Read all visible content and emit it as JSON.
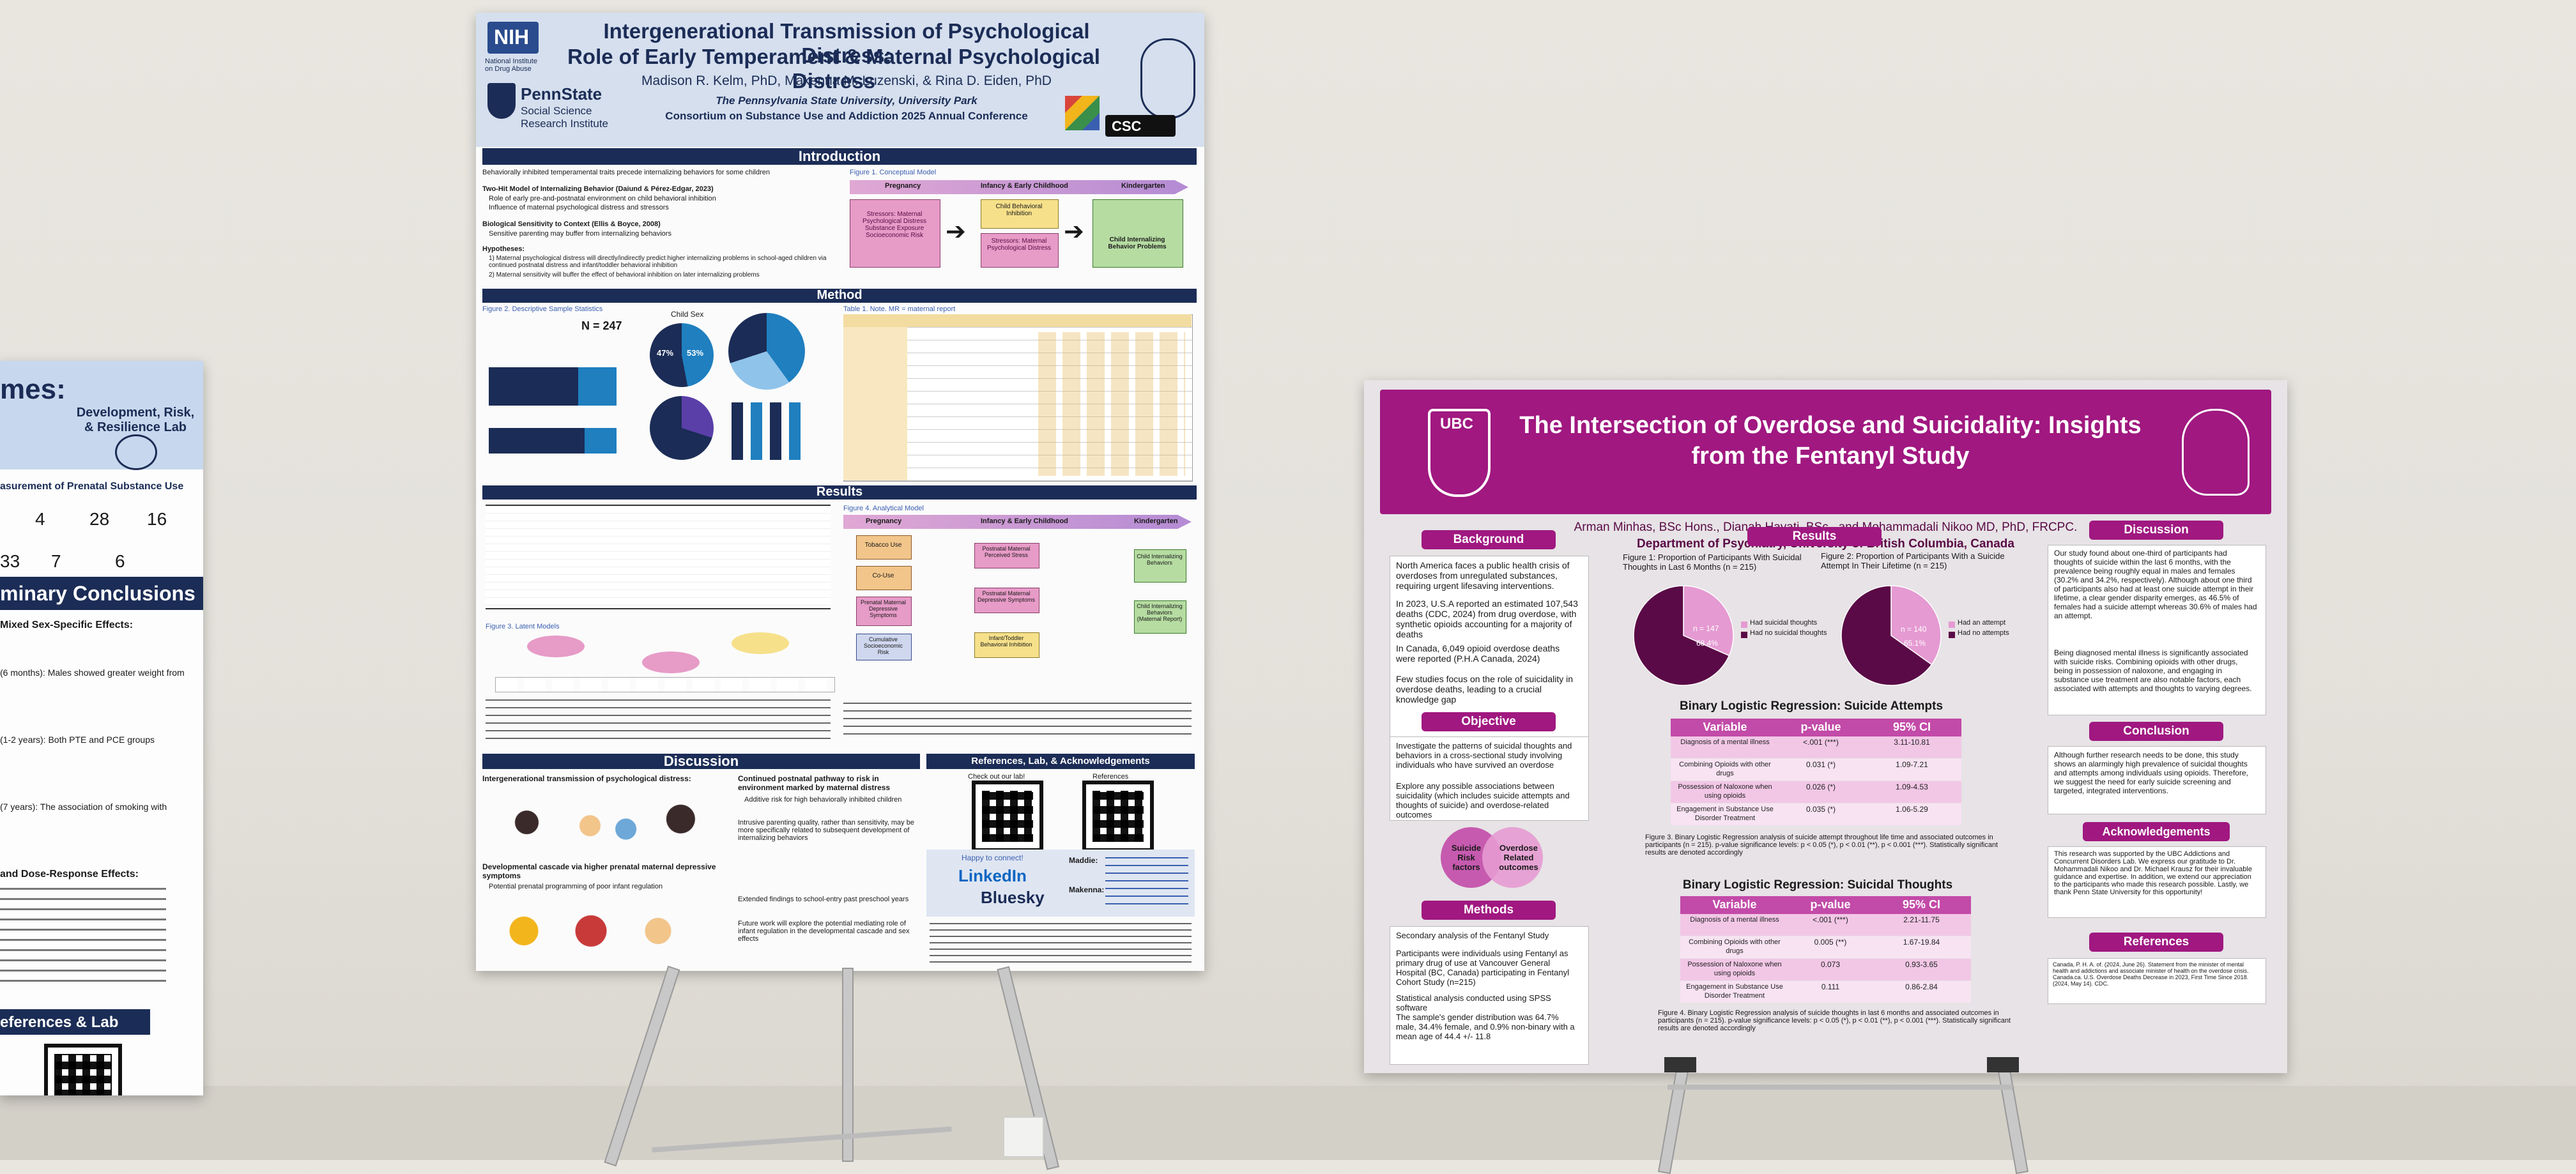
{
  "left_poster": {
    "title_fragment": "mes:",
    "lab_logo_text": "Development, Risk, & Resilience Lab",
    "measurement_heading": "asurement of Prenatal Substance Use",
    "numbers_row1": [
      "4",
      "28",
      "16"
    ],
    "numbers_row2": [
      "33",
      "7",
      "6"
    ],
    "conclusions_heading": "minary Conclusions",
    "findings": [
      "Mixed Sex-Specific Effects:",
      "(6 months): Males showed greater weight from",
      "(1-2 years): Both PTE and PCE groups",
      "(7 years): The association of smoking with",
      "and Dose-Response Effects:"
    ],
    "references_heading": "eferences & Lab"
  },
  "center_poster": {
    "title_line1": "Intergenerational Transmission of Psychological Distress:",
    "title_line2": "Role of Early Temperament & Maternal Psychological Distress",
    "authors": "Madison R. Kelm, PhD, Makenna M. Luzenski, & Rina D. Eiden, PhD",
    "affiliation_line1": "The Pennsylvania State University, University Park",
    "affiliation_line2": "Consortium on Substance Use and Addiction 2025 Annual Conference",
    "nih_label": "NIH",
    "nih_sub": "National Institute on Drug Abuse",
    "psu_label": "PennState",
    "psu_sub": "Social Science Research Institute",
    "csc_label": "CSC",
    "sections": {
      "introduction": "Introduction",
      "method": "Method",
      "results": "Results",
      "discussion": "Discussion",
      "references": "References, Lab, & Acknowledgements"
    },
    "intro_lines": [
      "Behaviorally inhibited temperamental traits precede internalizing behaviors for some children",
      "Two-Hit Model of Internalizing Behavior (Daiund & Pérez-Edgar, 2023)",
      "Role of early pre-and-postnatal environment on child behavioral inhibition",
      "Influence of maternal psychological distress and stressors",
      "Biological Sensitivity to Context (Ellis & Boyce, 2008)",
      "Sensitive parenting may buffer from internalizing behaviors",
      "Hypotheses:",
      "1) Maternal psychological distress will directly/indirectly predict higher internalizing problems in school-aged children via continued postnatal distress and infant/toddler behavioral inhibition",
      "2) Maternal sensitivity will buffer the effect of behavioral inhibition on later internalizing problems"
    ],
    "figure1_label": "Figure 1. Conceptual Model",
    "figure1_stages": [
      "Pregnancy",
      "Infancy & Early Childhood",
      "Kindergarten"
    ],
    "figure1_boxes": [
      "Stressors: Maternal Psychological Distress Substance Exposure Socioeconomic Risk",
      "Child Behavioral Inhibition",
      "Stressors: Maternal Psychological Distress",
      "Child Internalizing Behavior Problems"
    ],
    "figure2_label": "Figure 2. Descriptive Sample Statistics",
    "sample_n": "N = 247",
    "child_sex_label": "Child Sex",
    "sex_pcts": [
      "47%",
      "53%"
    ],
    "table1_label": "Table 1. Note. MR = maternal report",
    "figure4_label": "Figure 4. Analytical Model",
    "figure4_stages": [
      "Pregnancy",
      "Infancy & Early Childhood",
      "Kindergarten"
    ],
    "figure4_boxes": [
      "Tobacco Use",
      "Co-Use",
      "Prenatal Maternal Depressive Symptoms",
      "Cumulative Socioeconomic Risk",
      "Postnatal Maternal Perceived Stress",
      "Postnatal Maternal Depressive Symptoms",
      "Infant/Toddler Behavioral Inhibition",
      "Child Internalizing Behaviors",
      "Child Internalizing Behaviors (Maternal Report)"
    ],
    "figure3_label": "Figure 3. Latent Models",
    "discussion_items": [
      "Intergenerational transmission of psychological distress:",
      "Continued postnatal pathway to risk in environment marked by maternal distress",
      "Additive risk for high behaviorally inhibited children",
      "Intrusive parenting quality, rather than sensitivity, may be more specifically related to subsequent development of internalizing behaviors",
      "Developmental cascade via higher prenatal maternal depressive symptoms",
      "Potential prenatal programming of poor infant regulation",
      "Extended findings to school-entry past preschool years",
      "Future work will explore the potential mediating role of infant regulation in the developmental cascade and sex effects"
    ],
    "refs_check_out": "Check out our lab!",
    "refs_references": "References",
    "refs_happy": "Happy to connect!",
    "linkedin": "LinkedIn",
    "bluesky": "Bluesky",
    "contact_names": [
      "Maddie:",
      "Makenna:"
    ]
  },
  "right_poster": {
    "ubc_label": "UBC",
    "title_line1": "The Intersection of Overdose and Suicidality: Insights",
    "title_line2": "from the Fentanyl Study",
    "authors": "Arman Minhas, BSc Hons., Dianah Hayati, BSc., and Mohammadali Nikoo MD, PhD, FRCPC.",
    "department": "Department of Psychiatry, University of British Columbia, Canada",
    "background_heading": "Background",
    "background_bullets": [
      "North America faces a public health crisis of overdoses from unregulated substances, requiring urgent lifesaving interventions.",
      "In 2023, U.S.A reported an estimated 107,543 deaths (CDC, 2024) from drug overdose, with synthetic opioids accounting for a majority of deaths",
      "In Canada, 6,049 opioid overdose deaths were reported (P.H.A Canada, 2024)",
      "Few studies focus on the role of suicidality in overdose deaths, leading to a crucial knowledge gap"
    ],
    "objective_heading": "Objective",
    "objective_bullets": [
      "Investigate the patterns of suicidal thoughts and behaviors in a cross-sectional study involving individuals who have survived an overdose",
      "Explore any possible associations between suicidality (which includes suicide attempts and thoughts of suicide) and overdose-related outcomes"
    ],
    "venn_left": "Suicide Risk factors",
    "venn_right": "Overdose Related outcomes",
    "methods_heading": "Methods",
    "methods_bullets": [
      "Secondary analysis of the Fentanyl Study",
      "Participants were individuals using Fentanyl as primary drug of use at Vancouver General Hospital (BC, Canada) participating in Fentanyl Cohort Study (n=215)",
      "Statistical analysis conducted using SPSS software",
      "The sample's gender distribution was 64.7% male, 34.4% female, and 0.9% non-binary with a mean age of 44.4 +/- 11.8"
    ],
    "results_heading": "Results",
    "figure1_caption": "Figure 1: Proportion of Participants With Suicidal Thoughts in Last 6 Months (n = 215)",
    "figure2_caption": "Figure 2: Proportion of Participants With a Suicide Attempt In Their Lifetime (n = 215)",
    "pie1": {
      "labels": [
        "Had suicidal thoughts",
        "Had no suicidal thoughts"
      ],
      "counts": [
        "n = 68",
        "n = 147"
      ],
      "pcts": [
        "31.6%",
        "68.4%"
      ],
      "values": [
        31.6,
        68.4
      ]
    },
    "pie2": {
      "labels": [
        "Had an attempt",
        "Had no attempts"
      ],
      "counts": [
        "n = 75",
        "n = 140"
      ],
      "pcts": [
        "34.9%",
        "65.1%"
      ],
      "values": [
        34.9,
        65.1
      ]
    },
    "colors": {
      "brand": "#a01880",
      "dark": "#5a0a46",
      "light": "#e59ad2",
      "table_row": "#f2c7e6"
    },
    "table1_title": "Binary Logistic Regression: Suicide Attempts",
    "table_headers": [
      "Variable",
      "p-value",
      "95% CI"
    ],
    "table1_rows": [
      [
        "Diagnosis of a mental illness",
        "<.001 (***)",
        "3.11-10.81"
      ],
      [
        "Combining Opioids with other drugs",
        "0.031 (*)",
        "1.09-7.21"
      ],
      [
        "Possession of Naloxone when using opioids",
        "0.026 (*)",
        "1.09-4.53"
      ],
      [
        "Engagement in Substance Use Disorder Treatment",
        "0.035 (*)",
        "1.06-5.29"
      ]
    ],
    "table1_caption": "Figure 3. Binary Logistic Regression analysis of suicide attempt throughout life time and associated outcomes in participants (n = 215). p-value significance levels: p < 0.05 (*), p < 0.01 (**), p < 0.001 (***). Statistically significant results are denoted accordingly",
    "table2_title": "Binary Logistic Regression: Suicidal Thoughts",
    "table2_rows": [
      [
        "Diagnosis of a mental illness",
        "<.001 (***)",
        "2.21-11.75"
      ],
      [
        "Combining Opioids with other drugs",
        "0.005 (**)",
        "1.67-19.84"
      ],
      [
        "Possession of Naloxone when using opioids",
        "0.073",
        "0.93-3.65"
      ],
      [
        "Engagement in Substance Use Disorder Treatment",
        "0.111",
        "0.86-2.84"
      ]
    ],
    "table2_caption": "Figure 4. Binary Logistic Regression analysis of suicide thoughts in last 6 months and associated outcomes in participants (n = 215). p-value significance levels: p < 0.05 (*), p < 0.01 (**), p < 0.001 (***). Statistically significant results are denoted accordingly",
    "discussion_heading": "Discussion",
    "discussion_text": "Our study found about one-third of participants had thoughts of suicide within the last 6 months, with the prevalence being roughly equal in males and females (30.2% and 34.2%, respectively). Although about one third of participants also had at least one suicide attempt in their lifetime, a clear gender disparity emerges, as 46.5% of females had a suicide attempt whereas 30.6% of males had an attempt.",
    "discussion_text2": "Being diagnosed mental illness is significantly associated with suicide risks. Combining opioids with other drugs, being in possession of naloxone, and engaging in substance use treatment are also notable factors, each associated with attempts and thoughts to varying degrees.",
    "conclusion_heading": "Conclusion",
    "conclusion_text": "Although further research needs to be done, this study shows an alarmingly high prevalence of suicidal thoughts and attempts among individuals using opioids. Therefore, we suggest the need for early suicide screening and targeted, integrated interventions.",
    "ack_heading": "Acknowledgements",
    "ack_text": "This research was supported by the UBC Addictions and Concurrent Disorders Lab. We express our gratitude to Dr. Mohammadali Nikoo and Dr. Michael Krausz for their invaluable guidance and expertise. In addition, we extend our appreciation to the participants who made this research possible. Lastly, we thank Penn State University for this opportunity!",
    "references_heading": "References",
    "references_text": "Canada, P. H. A. of. (2024, June 26). Statement from the minister of mental health and addictions and associate minister of health on the overdose crisis. Canada.ca. U.S. Overdose Deaths Decrease in 2023, First Time Since 2018. (2024, May 14). CDC."
  }
}
